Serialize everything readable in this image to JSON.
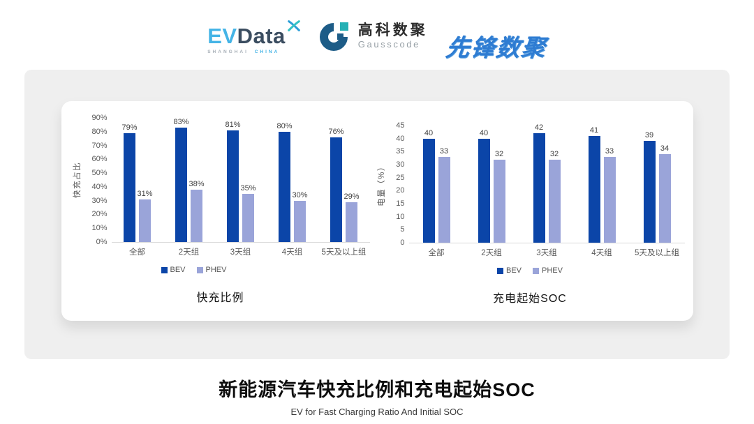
{
  "header": {
    "evdata": {
      "name_part1": "EV",
      "name_part2": "Data",
      "tagline_left": "SHANGHAI",
      "tagline_right": "CHINA"
    },
    "gausscode": {
      "cn_name": "高科数聚",
      "en_name": "Gausscode"
    },
    "pioneer": {
      "name": "先锋数聚"
    }
  },
  "icons": {
    "evdata_sparkle": "x-sparkle",
    "gausscode_mark": "g-ring"
  },
  "colors": {
    "bev": "#0b45a8",
    "phev": "#9aa4d9",
    "axis_line": "#d9d9d9",
    "tick_text": "#595959",
    "bar_label_text": "#3f3f3f",
    "card_gray": "#efefef",
    "evdata_blue": "#45b4e6",
    "evdata_slate": "#3b4d60",
    "gauss_navy": "#1d5c87",
    "gauss_teal": "#24b0b4",
    "pioneer_blue": "#2e7cd2"
  },
  "chart_data": [
    {
      "type": "bar",
      "title": "快充比例",
      "ylabel": "快充占比",
      "xlabel": "",
      "categories": [
        "全部",
        "2天组",
        "3天组",
        "4天组",
        "5天及以上组"
      ],
      "series": [
        {
          "name": "BEV",
          "color": "#0b45a8",
          "values": [
            79,
            83,
            81,
            80,
            76
          ]
        },
        {
          "name": "PHEV",
          "color": "#9aa4d9",
          "values": [
            31,
            38,
            35,
            30,
            29
          ]
        }
      ],
      "ylim": [
        0,
        90
      ],
      "yticks": [
        0,
        10,
        20,
        30,
        40,
        50,
        60,
        70,
        80,
        90
      ],
      "ytick_suffix": "%",
      "label_suffix": "%",
      "grid": false,
      "legend_position": "bottom"
    },
    {
      "type": "bar",
      "title": "充电起始SOC",
      "ylabel": "电量（%）",
      "xlabel": "",
      "categories": [
        "全部",
        "2天组",
        "3天组",
        "4天组",
        "5天及以上组"
      ],
      "series": [
        {
          "name": "BEV",
          "color": "#0b45a8",
          "values": [
            40,
            40,
            42,
            41,
            39
          ]
        },
        {
          "name": "PHEV",
          "color": "#9aa4d9",
          "values": [
            33,
            32,
            32,
            33,
            34
          ]
        }
      ],
      "ylim": [
        0,
        45
      ],
      "yticks": [
        0,
        5,
        10,
        15,
        20,
        25,
        30,
        35,
        40,
        45
      ],
      "ytick_suffix": "",
      "label_suffix": "",
      "grid": false,
      "legend_position": "bottom"
    }
  ],
  "footer": {
    "title": "新能源汽车快充比例和充电起始SOC",
    "subtitle": "EV for Fast Charging Ratio And Initial SOC"
  }
}
